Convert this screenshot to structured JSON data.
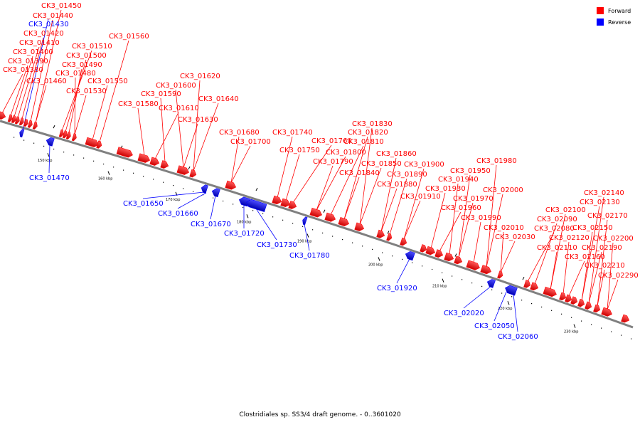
{
  "colors": {
    "forward": "#ff0000",
    "reverse": "#0000ff",
    "backbone": "#808080"
  },
  "legend": [
    {
      "label": "Forward",
      "strand": "forward"
    },
    {
      "label": "Reverse",
      "strand": "reverse"
    }
  ],
  "footer": "Clostridiales sp. SS3/4 draft genome. - 0..3601020",
  "backbone_ticks": [
    "150 kbp",
    "160 kbp",
    "170 kbp",
    "180 kbp",
    "190 kbp",
    "200 kbp",
    "210 kbp",
    "220 kbp",
    "230 kbp"
  ],
  "forward_labels": [
    "CK3_01450",
    "CK3_01440",
    "CK3_01420",
    "CK3_01410",
    "CK3_01400",
    "CK3_01390",
    "CK3_01380",
    "CK3_01460",
    "CK3_01510",
    "CK3_01500",
    "CK3_01490",
    "CK3_01480",
    "CK3_01530",
    "CK3_01550",
    "CK3_01560",
    "CK3_01620",
    "CK3_01600",
    "CK3_01590",
    "CK3_01580",
    "CK3_01610",
    "CK3_01640",
    "CK3_01630",
    "CK3_01680",
    "CK3_01700",
    "CK3_01740",
    "CK3_01760",
    "CK3_01750",
    "CK3_01830",
    "CK3_01820",
    "CK3_01810",
    "CK3_01800",
    "CK3_01790",
    "CK3_01850",
    "CK3_01840",
    "CK3_01860",
    "CK3_01900",
    "CK3_01890",
    "CK3_01880",
    "CK3_01910",
    "CK3_01980",
    "CK3_01950",
    "CK3_01940",
    "CK3_01930",
    "CK3_01970",
    "CK3_01960",
    "CK3_02000",
    "CK3_01990",
    "CK3_02010",
    "CK3_02030",
    "CK3_02140",
    "CK3_02130",
    "CK3_02100",
    "CK3_02170",
    "CK3_02090",
    "CK3_02080",
    "CK3_02120",
    "CK3_02150",
    "CK3_02200",
    "CK3_02110",
    "CK3_02190",
    "CK3_02160",
    "CK3_02210",
    "CK3_02290"
  ],
  "reverse_labels": [
    "CK3_01430",
    "CK3_01470",
    "CK3_01650",
    "CK3_01660",
    "CK3_01670",
    "CK3_01720",
    "CK3_01730",
    "CK3_01780",
    "CK3_01920",
    "CK3_02020",
    "CK3_02050",
    "CK3_02060"
  ]
}
